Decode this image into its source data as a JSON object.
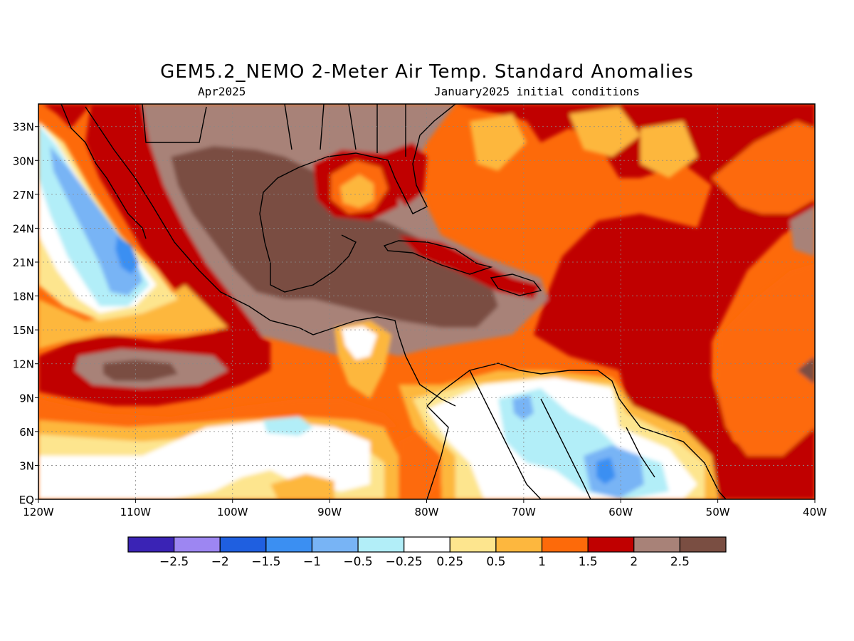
{
  "title": "GEM5.2_NEMO 2-Meter Air Temp. Standard Anomalies",
  "subtitle_left": "Apr2025",
  "subtitle_right": "January2025 initial conditions",
  "map": {
    "lon_range": [
      -120,
      -40
    ],
    "lat_range": [
      0,
      35
    ],
    "lat_labels": [
      "EQ",
      "3N",
      "6N",
      "9N",
      "12N",
      "15N",
      "18N",
      "21N",
      "24N",
      "27N",
      "30N",
      "33N"
    ],
    "lat_values": [
      0,
      3,
      6,
      9,
      12,
      15,
      18,
      21,
      24,
      27,
      30,
      33
    ],
    "lon_labels": [
      "120W",
      "110W",
      "100W",
      "90W",
      "80W",
      "70W",
      "60W",
      "50W",
      "40W"
    ],
    "lon_values": [
      -120,
      -110,
      -100,
      -90,
      -80,
      -70,
      -60,
      -50,
      -40
    ],
    "grid": true
  },
  "legend": {
    "colors": [
      "#3a23b5",
      "#9d86f2",
      "#1f5fe0",
      "#3b8ff2",
      "#78b4f5",
      "#b2eef8",
      "#ffffff",
      "#fde58e",
      "#fdb73e",
      "#fd6a0a",
      "#c00000",
      "#a88278",
      "#7a4e42"
    ],
    "labels": [
      "-2.5",
      "-2",
      "-1.5",
      "-1",
      "-0.5",
      "-0.25",
      "0.25",
      "0.5",
      "1",
      "1.5",
      "2",
      "2.5"
    ]
  }
}
